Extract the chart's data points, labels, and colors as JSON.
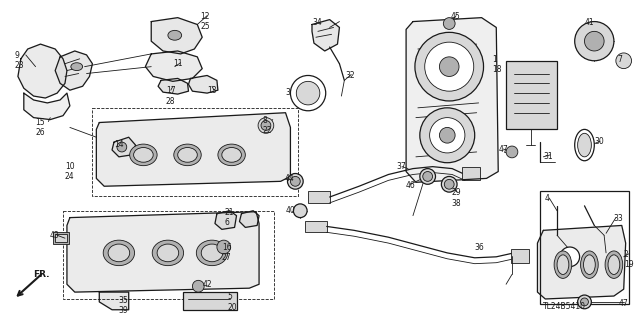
{
  "background_color": "#ffffff",
  "line_color": "#1a1a1a",
  "diagram_code": "TL24B5410",
  "figsize": [
    6.4,
    3.19
  ],
  "dpi": 100
}
